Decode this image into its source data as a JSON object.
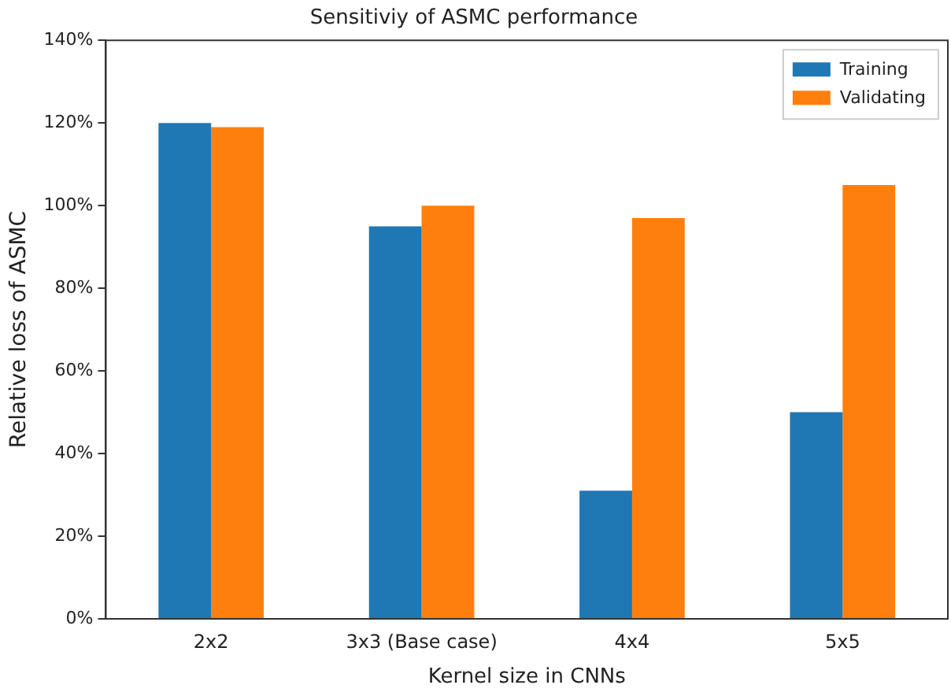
{
  "chart_data": {
    "type": "bar",
    "title": "Sensitiviy of ASMC performance",
    "xlabel": "Kernel size in CNNs",
    "ylabel": "Relative loss of ASMC",
    "categories": [
      "2x2",
      "3x3 (Base case)",
      "4x4",
      "5x5"
    ],
    "series": [
      {
        "name": "Training",
        "color": "#1f77b4",
        "values": [
          120,
          95,
          31,
          50
        ]
      },
      {
        "name": "Validating",
        "color": "#ff7f0e",
        "values": [
          119,
          100,
          97,
          105
        ]
      }
    ],
    "ylim": [
      0,
      140
    ],
    "yticks": [
      {
        "value": 0,
        "label": "0%"
      },
      {
        "value": 20,
        "label": "20%"
      },
      {
        "value": 40,
        "label": "40%"
      },
      {
        "value": 60,
        "label": "60%"
      },
      {
        "value": 80,
        "label": "80%"
      },
      {
        "value": 100,
        "label": "100%"
      },
      {
        "value": 120,
        "label": "120%"
      },
      {
        "value": 140,
        "label": "140%"
      }
    ],
    "legend": "top right",
    "grid": false
  }
}
